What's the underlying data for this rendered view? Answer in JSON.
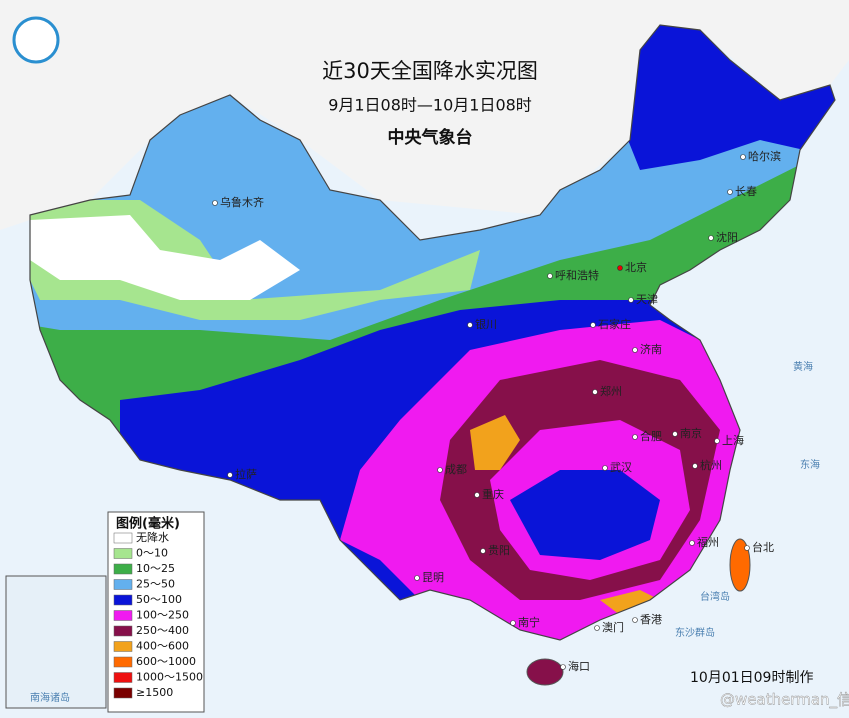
{
  "header": {
    "title": "近30天全国降水实况图",
    "subtitle": "9月1日08时—10月1日08时",
    "issuer": "中央气象台"
  },
  "legend": {
    "title": "图例(毫米)",
    "items": [
      {
        "label": "无降水",
        "color": "#ffffff"
      },
      {
        "label": "0～10",
        "color": "#a6e58f"
      },
      {
        "label": "10～25",
        "color": "#3dae48"
      },
      {
        "label": "25～50",
        "color": "#63b0ee"
      },
      {
        "label": "50～100",
        "color": "#0a14d8"
      },
      {
        "label": "100～250",
        "color": "#f01af0"
      },
      {
        "label": "250～400",
        "color": "#86104a"
      },
      {
        "label": "400～600",
        "color": "#f2a21c"
      },
      {
        "label": "600～1000",
        "color": "#ff6a00"
      },
      {
        "label": "1000～1500",
        "color": "#ee1010"
      },
      {
        "label": "≥1500",
        "color": "#7a0000"
      }
    ]
  },
  "cities": [
    "乌鲁木齐",
    "哈尔滨",
    "长春",
    "沈阳",
    "北京",
    "天津",
    "呼和浩特",
    "石家庄",
    "银川",
    "济南",
    "郑州",
    "合肥",
    "南京",
    "上海",
    "杭州",
    "武汉",
    "成都",
    "重庆",
    "贵阳",
    "昆明",
    "拉萨",
    "福州",
    "台北",
    "南宁",
    "香港",
    "澳门",
    "海口"
  ],
  "seas": [
    "黄海",
    "东海",
    "台湾岛",
    "东沙群岛",
    "南海诸岛"
  ],
  "footer": {
    "made": "10月01日09时制作",
    "watermark": "@weatherman_信欣"
  }
}
